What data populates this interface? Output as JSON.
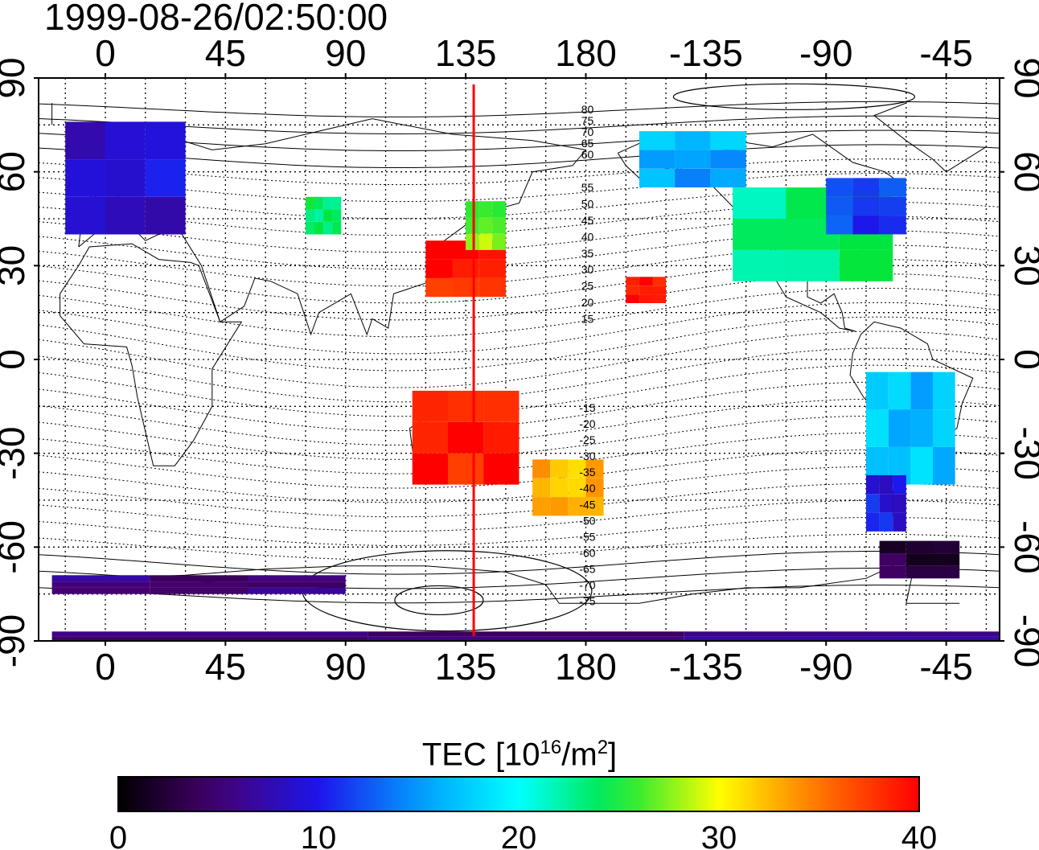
{
  "title": "1999-08-26/02:50:00",
  "map": {
    "x_ticks": [
      "0",
      "45",
      "90",
      "135",
      "180",
      "-135",
      "-90",
      "-45"
    ],
    "y_ticks": [
      "90",
      "60",
      "30",
      "0",
      "-30",
      "-60",
      "-90"
    ],
    "contour_labels_north": [
      "80",
      "75",
      "70",
      "65",
      "60",
      "55",
      "50",
      "45",
      "40",
      "35",
      "30",
      "25",
      "20",
      "15"
    ],
    "contour_labels_south": [
      "-15",
      "-20",
      "-25",
      "-30",
      "-35",
      "-40",
      "-45",
      "-50",
      "-55",
      "-60",
      "-65",
      "-70",
      "-75"
    ],
    "marker_longitude": 138,
    "marker_color": "#ff0000"
  },
  "colorbar": {
    "label_prefix": "TEC  [10",
    "label_exp1": "16",
    "label_mid": "/m",
    "label_exp2": "2",
    "label_suffix": "]",
    "ticks": [
      "0",
      "10",
      "20",
      "30",
      "40"
    ],
    "range": [
      0,
      40
    ]
  },
  "chart_data": {
    "type": "heatmap",
    "title": "1999-08-26/02:50:00",
    "xlabel": "",
    "ylabel": "",
    "value_label": "TEC  [10^16/m^2]",
    "zlim": [
      0,
      40
    ],
    "xlim": [
      -25,
      335
    ],
    "ylim": [
      -90,
      90
    ],
    "regions": [
      {
        "lon_range": [
          -15,
          30
        ],
        "lat_range": [
          40,
          70
        ],
        "tec": 9
      },
      {
        "lon_range": [
          75,
          85
        ],
        "lat_range": [
          40,
          50
        ],
        "tec": 24
      },
      {
        "lon_range": [
          120,
          150
        ],
        "lat_range": [
          20,
          35
        ],
        "tec": 39
      },
      {
        "lon_range": [
          135,
          150
        ],
        "lat_range": [
          35,
          48
        ],
        "tec": 27
      },
      {
        "lon_range": [
          115,
          155
        ],
        "lat_range": [
          -40,
          -15
        ],
        "tec": 39
      },
      {
        "lon_range": [
          160,
          180
        ],
        "lat_range": [
          -50,
          -35
        ],
        "tec": 33
      },
      {
        "lon_range": [
          195,
          210
        ],
        "lat_range": [
          18,
          25
        ],
        "tec": 39
      },
      {
        "lon_range": [
          235,
          295
        ],
        "lat_range": [
          25,
          50
        ],
        "tec": 23
      },
      {
        "lon_range": [
          270,
          300
        ],
        "lat_range": [
          40,
          55
        ],
        "tec": 12
      },
      {
        "lon_range": [
          200,
          240
        ],
        "lat_range": [
          55,
          70
        ],
        "tec": 16
      },
      {
        "lon_range": [
          285,
          310
        ],
        "lat_range": [
          -40,
          -10
        ],
        "tec": 17
      },
      {
        "lon_range": [
          285,
          300
        ],
        "lat_range": [
          -55,
          -40
        ],
        "tec": 10
      },
      {
        "lon_range": [
          290,
          320
        ],
        "lat_range": [
          -70,
          -60
        ],
        "tec": 3
      },
      {
        "lon_range": [
          -20,
          90
        ],
        "lat_range": [
          -75,
          -70
        ],
        "tec": 6
      },
      {
        "lon_range": [
          -20,
          335
        ],
        "lat_range": [
          -90,
          -88
        ],
        "tec": 6
      }
    ]
  }
}
